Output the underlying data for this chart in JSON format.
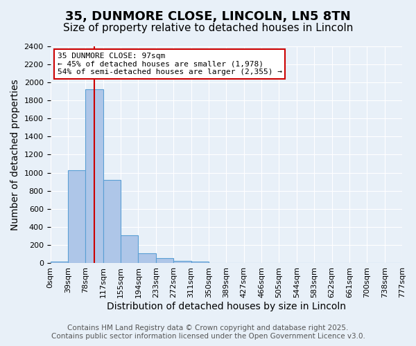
{
  "title": "35, DUNMORE CLOSE, LINCOLN, LN5 8TN",
  "subtitle": "Size of property relative to detached houses in Lincoln",
  "xlabel": "Distribution of detached houses by size in Lincoln",
  "ylabel": "Number of detached properties",
  "bin_labels": [
    "0sqm",
    "39sqm",
    "78sqm",
    "117sqm",
    "155sqm",
    "194sqm",
    "233sqm",
    "272sqm",
    "311sqm",
    "350sqm",
    "389sqm",
    "427sqm",
    "466sqm",
    "505sqm",
    "544sqm",
    "583sqm",
    "622sqm",
    "661sqm",
    "700sqm",
    "738sqm",
    "777sqm"
  ],
  "bar_values": [
    20,
    1030,
    1920,
    920,
    310,
    110,
    55,
    30,
    18,
    0,
    0,
    0,
    0,
    0,
    0,
    0,
    0,
    0,
    0,
    0
  ],
  "bar_color": "#aec6e8",
  "bar_edge_color": "#5a9fd4",
  "redline_x": 2.487,
  "annotation_title": "35 DUNMORE CLOSE: 97sqm",
  "annotation_line1": "← 45% of detached houses are smaller (1,978)",
  "annotation_line2": "54% of semi-detached houses are larger (2,355) →",
  "annotation_box_color": "#ffffff",
  "annotation_box_edgecolor": "#cc0000",
  "ylim": [
    0,
    2400
  ],
  "yticks": [
    0,
    200,
    400,
    600,
    800,
    1000,
    1200,
    1400,
    1600,
    1800,
    2000,
    2200,
    2400
  ],
  "footer_line1": "Contains HM Land Registry data © Crown copyright and database right 2025.",
  "footer_line2": "Contains public sector information licensed under the Open Government Licence v3.0.",
  "bg_color": "#e8f0f8",
  "plot_bg_color": "#e8f0f8",
  "grid_color": "#ffffff",
  "title_fontsize": 13,
  "subtitle_fontsize": 11,
  "axis_label_fontsize": 10,
  "tick_fontsize": 8,
  "footer_fontsize": 7.5
}
